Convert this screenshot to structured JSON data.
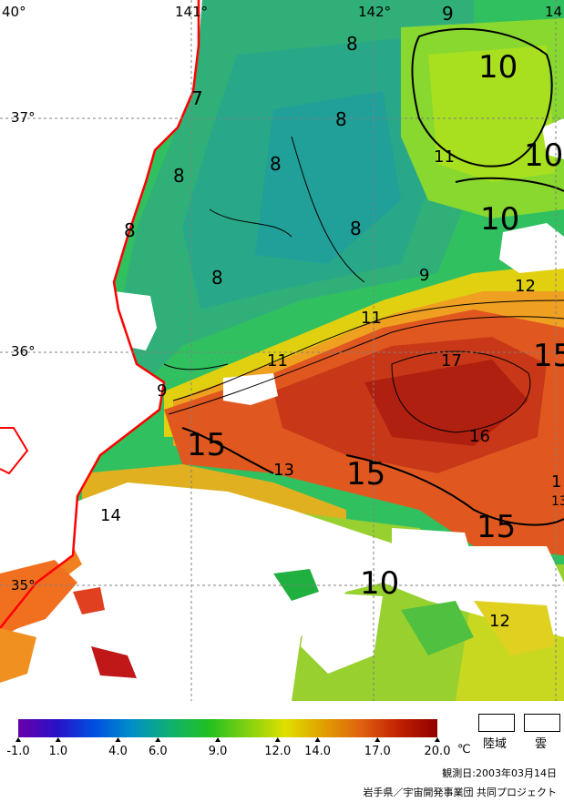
{
  "map": {
    "longitude_labels": [
      "40°",
      "141°",
      "142°",
      "14"
    ],
    "latitude_labels": [
      "37°",
      "36°",
      "35°"
    ],
    "contour_labels": [
      {
        "text": "9"
      },
      {
        "text": "8"
      },
      {
        "text": "10"
      },
      {
        "text": "7"
      },
      {
        "text": "8"
      },
      {
        "text": "11"
      },
      {
        "text": "10"
      },
      {
        "text": "8"
      },
      {
        "text": "8"
      },
      {
        "text": "8"
      },
      {
        "text": "10"
      },
      {
        "text": "8"
      },
      {
        "text": "8"
      },
      {
        "text": "9"
      },
      {
        "text": "12"
      },
      {
        "text": "11"
      },
      {
        "text": "11"
      },
      {
        "text": "17"
      },
      {
        "text": "15"
      },
      {
        "text": "9"
      },
      {
        "text": "15"
      },
      {
        "text": "16"
      },
      {
        "text": "13"
      },
      {
        "text": "15"
      },
      {
        "text": "14"
      },
      {
        "text": "15"
      },
      {
        "text": "10"
      },
      {
        "text": "12"
      },
      {
        "text": "1"
      },
      {
        "text": "13"
      }
    ]
  },
  "colorbar": {
    "tick_labels": [
      "-1.0",
      "1.0",
      "4.0",
      "6.0",
      "9.0",
      "12.0",
      "14.0",
      "17.0",
      "20.0"
    ],
    "tick_values": [
      -1.0,
      1.0,
      4.0,
      6.0,
      9.0,
      12.0,
      14.0,
      17.0,
      20.0
    ],
    "unit": "℃",
    "stops": [
      "#6a00a8",
      "#2a10c8",
      "#0050e0",
      "#0090c8",
      "#10b070",
      "#20c020",
      "#80d010",
      "#e0e000",
      "#e0a000",
      "#e06010",
      "#c02000",
      "#900000"
    ]
  },
  "legend_boxes": [
    {
      "label": "陸域"
    },
    {
      "label": "雲"
    }
  ],
  "footer": {
    "observation": "観測日:2003年03月14日",
    "credit": "岩手県／宇宙開発事業団 共同プロジェクト"
  },
  "colors": {
    "coastline": "#ff0000",
    "land": "#ffffff",
    "cloud": "#ffffff",
    "grid": "#808080"
  }
}
